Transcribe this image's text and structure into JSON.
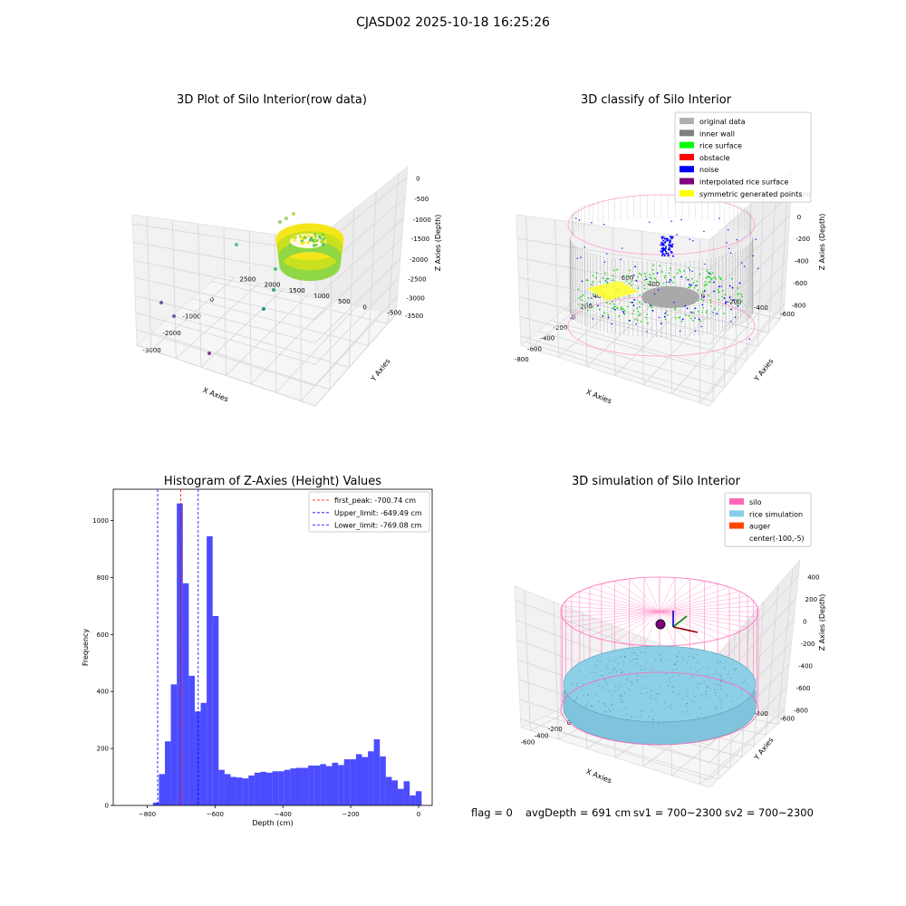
{
  "figure": {
    "title": "CJASD02 2025-10-18 16:25:26",
    "status": {
      "flag": "flag = 0",
      "avg_depth": "avgDepth = 691 cm",
      "sv1": "sv1 = 700~2300",
      "sv2": "sv2 = 700~2300"
    }
  },
  "chart_data": [
    {
      "type": "scatter",
      "title": "3D Plot of Silo Interior(row data)",
      "xlabel": "X Axies",
      "ylabel": "Y Axies",
      "zlabel": "Z Axies (Depth)",
      "x_ticks": [
        "-3000",
        "-2000",
        "-1000",
        "0"
      ],
      "y_ticks": [
        "-500",
        "0",
        "500",
        "1000",
        "1500",
        "2000",
        "2500"
      ],
      "z_ticks": [
        "0",
        "-500",
        "-1000",
        "-1500",
        "-2000",
        "-2500",
        "-3000",
        "-3500"
      ],
      "colormap": "viridis",
      "outlier_points": [
        {
          "x": -3400,
          "y": -200,
          "z": -3300
        },
        {
          "x": -3200,
          "y": 0,
          "z": -3600
        },
        {
          "x": -2200,
          "y": -300,
          "z": -3800
        },
        {
          "x": -1300,
          "y": 300,
          "z": -3400
        },
        {
          "x": -1500,
          "y": 1200,
          "z": -3000
        },
        {
          "x": -2000,
          "y": 2000,
          "z": -1500
        }
      ]
    },
    {
      "type": "scatter",
      "title": "3D classify of Silo Interior",
      "xlabel": "X Axies",
      "ylabel": "Y Axies",
      "zlabel": "Z Axies (Depth)",
      "x_ticks": [
        "-800",
        "-600",
        "-400",
        "-200",
        "0",
        "200",
        "400"
      ],
      "y_ticks": [
        "-600",
        "-400",
        "-200",
        "0",
        "200",
        "400",
        "600"
      ],
      "z_ticks": [
        "200",
        "0",
        "-200",
        "-400",
        "-600",
        "-800"
      ],
      "legend": {
        "position": "top-right",
        "entries": [
          {
            "label": "original data",
            "color": "#b0b0b0"
          },
          {
            "label": "inner wall",
            "color": "#808080"
          },
          {
            "label": "rice surface",
            "color": "#00ff00"
          },
          {
            "label": "obstacle",
            "color": "#ff0000"
          },
          {
            "label": "noise",
            "color": "#0000ff"
          },
          {
            "label": "interpolated rice surface",
            "color": "#800080"
          },
          {
            "label": "symmetric generated points",
            "color": "#ffff00"
          }
        ]
      }
    },
    {
      "type": "bar",
      "title": "Histogram of Z-Axies (Height) Values",
      "xlabel": "Depth (cm)",
      "ylabel": "Frequency",
      "xlim": [
        -900,
        40
      ],
      "ylim": [
        0,
        1110
      ],
      "x_ticks": [
        -800,
        -600,
        -400,
        -200,
        0
      ],
      "y_ticks": [
        0,
        200,
        400,
        600,
        800,
        1000
      ],
      "bin_width": 17.6,
      "bins": [
        {
          "start": -783,
          "count": 10
        },
        {
          "start": -765.4,
          "count": 110
        },
        {
          "start": -747.8,
          "count": 225
        },
        {
          "start": -730.2,
          "count": 425
        },
        {
          "start": -712.6,
          "count": 1060
        },
        {
          "start": -695,
          "count": 780
        },
        {
          "start": -677.4,
          "count": 455
        },
        {
          "start": -659.8,
          "count": 330
        },
        {
          "start": -642.2,
          "count": 360
        },
        {
          "start": -624.6,
          "count": 945
        },
        {
          "start": -607,
          "count": 665
        },
        {
          "start": -589.4,
          "count": 125
        },
        {
          "start": -571.8,
          "count": 110
        },
        {
          "start": -554.2,
          "count": 100
        },
        {
          "start": -536.6,
          "count": 98
        },
        {
          "start": -519,
          "count": 95
        },
        {
          "start": -501.4,
          "count": 105
        },
        {
          "start": -483.8,
          "count": 115
        },
        {
          "start": -466.2,
          "count": 118
        },
        {
          "start": -448.6,
          "count": 115
        },
        {
          "start": -431,
          "count": 120
        },
        {
          "start": -413.4,
          "count": 120
        },
        {
          "start": -395.8,
          "count": 125
        },
        {
          "start": -378.2,
          "count": 130
        },
        {
          "start": -360.6,
          "count": 132
        },
        {
          "start": -343,
          "count": 132
        },
        {
          "start": -325.4,
          "count": 140
        },
        {
          "start": -307.8,
          "count": 140
        },
        {
          "start": -290.2,
          "count": 145
        },
        {
          "start": -272.6,
          "count": 138
        },
        {
          "start": -255,
          "count": 150
        },
        {
          "start": -237.4,
          "count": 142
        },
        {
          "start": -219.8,
          "count": 162
        },
        {
          "start": -202.2,
          "count": 162
        },
        {
          "start": -184.6,
          "count": 180
        },
        {
          "start": -167,
          "count": 170
        },
        {
          "start": -149.4,
          "count": 190
        },
        {
          "start": -131.8,
          "count": 232
        },
        {
          "start": -114.2,
          "count": 172
        },
        {
          "start": -96.6,
          "count": 100
        },
        {
          "start": -79,
          "count": 88
        },
        {
          "start": -61.4,
          "count": 58
        },
        {
          "start": -43.8,
          "count": 85
        },
        {
          "start": -26.2,
          "count": 35
        },
        {
          "start": -8.6,
          "count": 50
        }
      ],
      "bar_color": "#0000ff",
      "vlines": [
        {
          "label": "first_peak: -700.74 cm",
          "x": -700.74,
          "color": "#ff0000"
        },
        {
          "label": "Upper_limit: -649.49 cm",
          "x": -649.49,
          "color": "#0000ff"
        },
        {
          "label": "Lower_limit: -769.08 cm",
          "x": -769.08,
          "color": "#0000ff"
        }
      ],
      "legend": {
        "position": "top-right"
      }
    },
    {
      "type": "scatter",
      "title": "3D simulation of Silo Interior",
      "xlabel": "X Axies",
      "ylabel": "Y Axies",
      "zlabel": "Z Axies (Depth)",
      "x_ticks": [
        "-600",
        "-400",
        "-200",
        "0",
        "200",
        "400"
      ],
      "y_ticks": [
        "-600",
        "-400",
        "-200",
        "0",
        "200",
        "400",
        "600"
      ],
      "z_ticks": [
        "400",
        "200",
        "0",
        "-200",
        "-400",
        "-600",
        "-800"
      ],
      "legend": {
        "position": "top-right",
        "entries": [
          {
            "label": "silo",
            "color": "#ff69b4"
          },
          {
            "label": "rice simulation",
            "color": "#87ceeb"
          },
          {
            "label": "auger",
            "color": "#ff4500"
          },
          {
            "label": "center(-100,-5)",
            "color": ""
          }
        ]
      }
    }
  ]
}
